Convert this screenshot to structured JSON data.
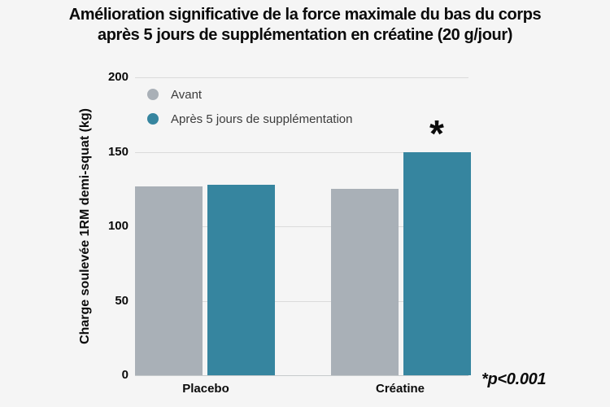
{
  "title": {
    "line1": "Amélioration significative de la force maximale du bas du corps",
    "line2": "après 5 jours de supplémentation en créatine (20 g/jour)"
  },
  "legend": {
    "items": [
      {
        "label": "Avant"
      },
      {
        "label": "Après 5 jours de supplémentation"
      }
    ]
  },
  "annotation": {
    "significance_marker": "*",
    "p_value": "*p<0.001"
  },
  "colors": {
    "background": "#F5F5F5",
    "gridline": "#DBDBDB",
    "baseline": "#C6CACC",
    "title_text": "#0B0B0B",
    "legend_text": "#3C3C3C"
  },
  "chart_data": {
    "type": "bar",
    "title": "Amélioration significative de la force maximale du bas du corps après 5 jours de supplémentation en créatine (20 g/jour)",
    "xlabel": "",
    "ylabel": "Charge soulevée 1RM demi-squat (kg)",
    "categories": [
      "Placebo",
      "Créatine"
    ],
    "series": [
      {
        "name": "Avant",
        "color": "#A9B0B7",
        "values": [
          127,
          125
        ]
      },
      {
        "name": "Après 5 jours de supplémentation",
        "color": "#36859F",
        "values": [
          128,
          150
        ]
      }
    ],
    "ylim": [
      0,
      200
    ],
    "yticks": [
      0,
      50,
      100,
      150,
      200
    ],
    "grid": true,
    "legend_position": "upper-left",
    "significance": {
      "category": "Créatine",
      "series": "Après 5 jours de supplémentation",
      "marker": "*",
      "note": "*p<0.001"
    }
  }
}
